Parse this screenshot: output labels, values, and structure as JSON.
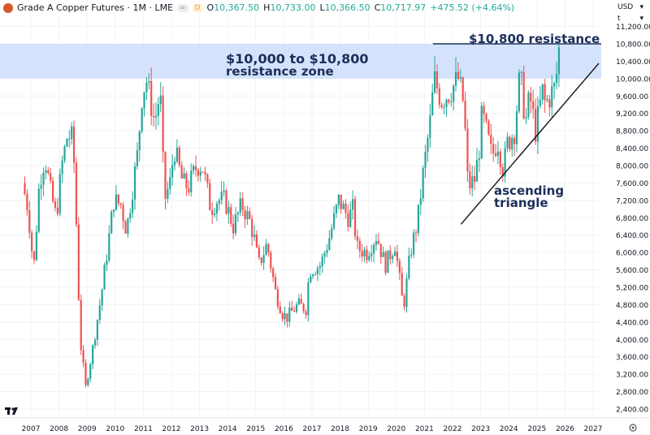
{
  "header": {
    "title": "Grade A Copper Futures · 1M · LME",
    "badge": "D",
    "open_label": "O",
    "open": "10,367.50",
    "high_label": "H",
    "high": "10,733.00",
    "low_label": "L",
    "low": "10,366.50",
    "close_label": "C",
    "close": "10,717.97",
    "change": "+475.52 (+4.64%)"
  },
  "price_axis": {
    "currency": "USD",
    "unit": "t"
  },
  "colors": {
    "up": "#26a69a",
    "down": "#ef5350",
    "zone": "#cfe0fb",
    "annotation": "#1c2e5a"
  },
  "chart_data": {
    "type": "candlestick",
    "title": "Grade A Copper Futures · 1M · LME",
    "ylim": [
      2200,
      11300
    ],
    "xlim": [
      2006.6,
      2027.4
    ],
    "y_ticks": [
      11200,
      10800,
      10400,
      10000,
      9600,
      9200,
      8800,
      8400,
      8000,
      7600,
      7200,
      6800,
      6400,
      6000,
      5600,
      5200,
      4800,
      4400,
      4000,
      3600,
      3200,
      2800,
      2400
    ],
    "y_tick_labels": [
      "11,200.00",
      "10,800.00",
      "10,400.00",
      "10,000.00",
      "9,600.00",
      "9,200.00",
      "8,800.00",
      "8,400.00",
      "8,000.00",
      "7,600.00",
      "7,200.00",
      "6,800.00",
      "6,400.00",
      "6,000.00",
      "5,600.00",
      "5,200.00",
      "4,800.00",
      "4,400.00",
      "4,000.00",
      "3,600.00",
      "3,200.00",
      "2,800.00",
      "2,400.00"
    ],
    "x_tick_labels": [
      "2007",
      "2008",
      "2009",
      "2010",
      "2011",
      "2012",
      "2013",
      "2014",
      "2015",
      "2016",
      "2017",
      "2018",
      "2019",
      "2020",
      "2021",
      "2022",
      "2023",
      "2024",
      "2025",
      "2026",
      "2027"
    ],
    "monthly_close_keypoints": [
      [
        2006.7,
        7600
      ],
      [
        2006.9,
        7000
      ],
      [
        2007.1,
        5600
      ],
      [
        2007.3,
        7600
      ],
      [
        2007.5,
        8200
      ],
      [
        2007.7,
        7400
      ],
      [
        2007.9,
        6800
      ],
      [
        2008.1,
        8000
      ],
      [
        2008.3,
        8700
      ],
      [
        2008.5,
        8600
      ],
      [
        2008.6,
        7000
      ],
      [
        2008.75,
        4000
      ],
      [
        2008.95,
        2900
      ],
      [
        2009.2,
        3800
      ],
      [
        2009.5,
        5000
      ],
      [
        2009.75,
        6200
      ],
      [
        2009.95,
        7200
      ],
      [
        2010.2,
        7100
      ],
      [
        2010.4,
        6500
      ],
      [
        2010.6,
        7400
      ],
      [
        2010.8,
        8300
      ],
      [
        2010.95,
        9600
      ],
      [
        2011.1,
        10000
      ],
      [
        2011.4,
        9000
      ],
      [
        2011.6,
        9700
      ],
      [
        2011.75,
        7200
      ],
      [
        2011.95,
        7600
      ],
      [
        2012.1,
        8400
      ],
      [
        2012.4,
        7600
      ],
      [
        2012.6,
        7500
      ],
      [
        2012.9,
        8000
      ],
      [
        2013.1,
        8000
      ],
      [
        2013.4,
        7000
      ],
      [
        2013.6,
        7200
      ],
      [
        2013.9,
        7200
      ],
      [
        2014.2,
        6600
      ],
      [
        2014.5,
        7100
      ],
      [
        2014.8,
        6700
      ],
      [
        2014.95,
        6300
      ],
      [
        2015.1,
        5700
      ],
      [
        2015.4,
        6200
      ],
      [
        2015.7,
        5100
      ],
      [
        2015.95,
        4600
      ],
      [
        2016.1,
        4500
      ],
      [
        2016.5,
        4800
      ],
      [
        2016.8,
        4700
      ],
      [
        2016.9,
        5600
      ],
      [
        2017.3,
        5700
      ],
      [
        2017.6,
        6300
      ],
      [
        2017.95,
        7200
      ],
      [
        2018.3,
        6800
      ],
      [
        2018.45,
        7000
      ],
      [
        2018.6,
        6100
      ],
      [
        2018.95,
        6000
      ],
      [
        2019.3,
        6400
      ],
      [
        2019.6,
        5700
      ],
      [
        2019.95,
        6200
      ],
      [
        2020.25,
        4700
      ],
      [
        2020.5,
        6000
      ],
      [
        2020.75,
        6700
      ],
      [
        2020.95,
        7800
      ],
      [
        2021.2,
        9000
      ],
      [
        2021.35,
        10000
      ],
      [
        2021.6,
        9500
      ],
      [
        2021.9,
        9700
      ],
      [
        2022.2,
        10000
      ],
      [
        2022.4,
        9400
      ],
      [
        2022.55,
        7500
      ],
      [
        2022.8,
        7700
      ],
      [
        2022.95,
        8400
      ],
      [
        2023.05,
        9200
      ],
      [
        2023.4,
        8200
      ],
      [
        2023.6,
        8600
      ],
      [
        2023.8,
        7900
      ],
      [
        2023.95,
        8500
      ],
      [
        2024.2,
        8800
      ],
      [
        2024.4,
        10100
      ],
      [
        2024.6,
        9000
      ],
      [
        2024.75,
        9600
      ],
      [
        2024.95,
        8800
      ],
      [
        2025.2,
        9700
      ],
      [
        2025.3,
        9400
      ],
      [
        2025.55,
        9700
      ],
      [
        2025.65,
        9800
      ],
      [
        2025.7,
        10100
      ],
      [
        2025.8,
        10718
      ]
    ],
    "annotations": {
      "zone_label_1": "$10,000 to $10,800",
      "zone_label_2": "resistance zone",
      "resistance_label": "$10,800 resistance",
      "triangle_label_1": "ascending",
      "triangle_label_2": "triangle",
      "zone_range": [
        10000,
        10800
      ],
      "resistance_level": 10800,
      "trendline": [
        [
          2022.3,
          6650
        ],
        [
          2027.2,
          10350
        ]
      ]
    }
  }
}
